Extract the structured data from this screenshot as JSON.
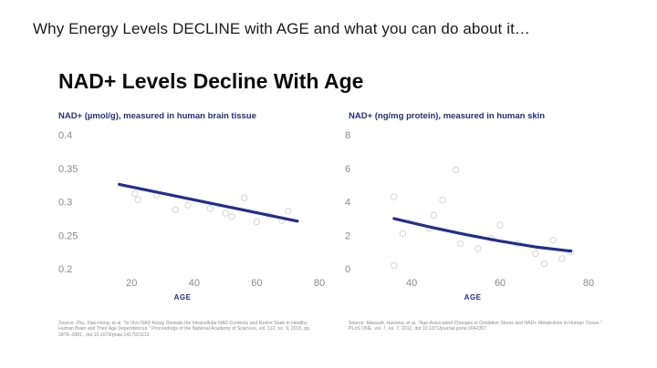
{
  "slide_title": "Why Energy Levels DECLINE with AGE and what you can do about it…",
  "card_title": "NAD+ Levels Decline With Age",
  "chart_data": [
    {
      "type": "scatter",
      "title": "NAD+ (µmol/g), measured in human brain tissue",
      "xlabel": "AGE",
      "ylabel": "",
      "xlim": [
        10,
        80
      ],
      "ylim": [
        0.2,
        0.4
      ],
      "xticks": [
        20,
        40,
        60,
        80
      ],
      "yticks": [
        "0.2",
        "0.25",
        "0.3",
        "0.35",
        "0.4"
      ],
      "points": [
        {
          "x": 21,
          "y": 0.312
        },
        {
          "x": 22,
          "y": 0.303
        },
        {
          "x": 28,
          "y": 0.31
        },
        {
          "x": 34,
          "y": 0.288
        },
        {
          "x": 38,
          "y": 0.295
        },
        {
          "x": 45,
          "y": 0.29
        },
        {
          "x": 50,
          "y": 0.283
        },
        {
          "x": 52,
          "y": 0.278
        },
        {
          "x": 56,
          "y": 0.306
        },
        {
          "x": 60,
          "y": 0.27
        },
        {
          "x": 64,
          "y": 0.28
        },
        {
          "x": 68,
          "y": 0.272
        },
        {
          "x": 70,
          "y": 0.286
        }
      ],
      "trend": [
        {
          "x": 16,
          "y": 0.326
        },
        {
          "x": 73,
          "y": 0.271
        }
      ],
      "source": "Source: Zhu, Xiao-Hong, et al. \"In Vivo NAD Assay Reveals the Intracellular NAD Contents and Redox State in Healthy Human Brain and Their Age Dependences.\" Proceedings of the National Academy of Sciences, vol. 112, no. 9, 2015, pp. 2876–2881., doi:10.1073/pnas.1417921112."
    },
    {
      "type": "scatter",
      "title": "NAD+ (ng/mg protein), measured in human skin",
      "xlabel": "AGE",
      "ylabel": "",
      "xlim": [
        28,
        80
      ],
      "ylim": [
        0,
        8
      ],
      "xticks": [
        40,
        60,
        80
      ],
      "yticks": [
        "0",
        "2",
        "4",
        "6",
        "8"
      ],
      "points": [
        {
          "x": 36,
          "y": 4.3
        },
        {
          "x": 36,
          "y": 0.2
        },
        {
          "x": 38,
          "y": 2.1
        },
        {
          "x": 44,
          "y": 2.4
        },
        {
          "x": 45,
          "y": 3.2
        },
        {
          "x": 47,
          "y": 4.1
        },
        {
          "x": 50,
          "y": 5.9
        },
        {
          "x": 51,
          "y": 1.5
        },
        {
          "x": 55,
          "y": 1.2
        },
        {
          "x": 58,
          "y": 1.8
        },
        {
          "x": 60,
          "y": 2.6
        },
        {
          "x": 64,
          "y": 1.5
        },
        {
          "x": 68,
          "y": 0.9
        },
        {
          "x": 70,
          "y": 0.3
        },
        {
          "x": 72,
          "y": 1.7
        },
        {
          "x": 74,
          "y": 0.6
        },
        {
          "x": 76,
          "y": 1.0
        }
      ],
      "trend_curve": [
        {
          "x": 36,
          "y": 3.0
        },
        {
          "x": 44,
          "y": 2.5
        },
        {
          "x": 52,
          "y": 2.05
        },
        {
          "x": 60,
          "y": 1.65
        },
        {
          "x": 68,
          "y": 1.3
        },
        {
          "x": 76,
          "y": 1.05
        }
      ],
      "source": "Source: Massudi, Hassina, et al. \"Age-Associated Changes in Oxidative Stress and NAD+ Metabolism in Human Tissue.\" PLoS ONE, vol. 7, no. 7, 2012, doi:10.1371/journal.pone.0042357."
    }
  ],
  "colors": {
    "trend": "#1f2f8f",
    "point": "#d6d6d6",
    "tick": "#8a8a8a",
    "accent": "#1f2f8f"
  }
}
